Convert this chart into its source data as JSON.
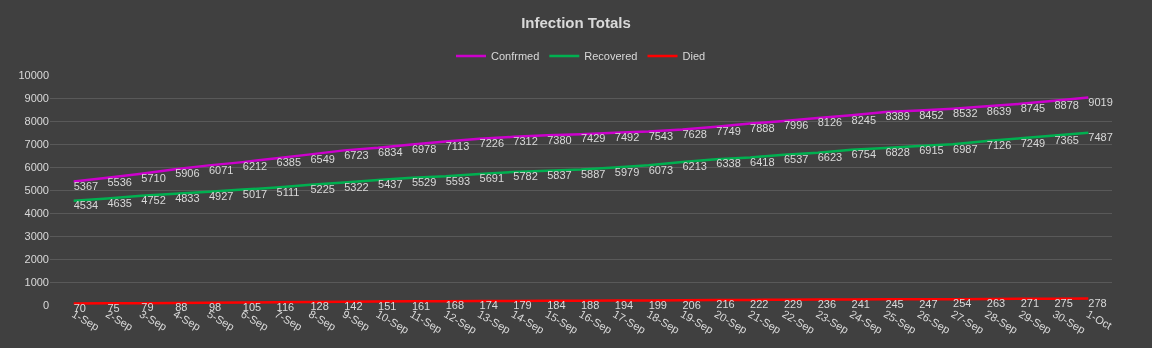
{
  "chart_data": {
    "type": "line",
    "title": "Infection Totals",
    "categories": [
      "1-Sep",
      "2-Sep",
      "3-Sep",
      "4-Sep",
      "5-Sep",
      "6-Sep",
      "7-Sep",
      "8-Sep",
      "9-Sep",
      "10-Sep",
      "11-Sep",
      "12-Sep",
      "13-Sep",
      "14-Sep",
      "15-Sep",
      "16-Sep",
      "17-Sep",
      "18-Sep",
      "19-Sep",
      "20-Sep",
      "21-Sep",
      "22-Sep",
      "23-Sep",
      "24-Sep",
      "25-Sep",
      "26-Sep",
      "27-Sep",
      "28-Sep",
      "29-Sep",
      "30-Sep",
      "1-Oct"
    ],
    "series": [
      {
        "name": "Confrmed",
        "color": "#cc00cc",
        "values": [
          5367,
          5536,
          5710,
          5906,
          6071,
          6212,
          6385,
          6549,
          6723,
          6834,
          6978,
          7113,
          7226,
          7312,
          7380,
          7429,
          7492,
          7543,
          7628,
          7749,
          7888,
          7996,
          8126,
          8245,
          8389,
          8452,
          8532,
          8639,
          8745,
          8878,
          9019
        ]
      },
      {
        "name": "Recovered",
        "color": "#00b050",
        "values": [
          4534,
          4635,
          4752,
          4833,
          4927,
          5017,
          5111,
          5225,
          5322,
          5437,
          5529,
          5593,
          5691,
          5782,
          5837,
          5887,
          5979,
          6073,
          6213,
          6338,
          6418,
          6537,
          6623,
          6754,
          6828,
          6915,
          6987,
          7126,
          7249,
          7365,
          7487
        ]
      },
      {
        "name": "Died",
        "color": "#ff0000",
        "values": [
          70,
          75,
          79,
          88,
          98,
          105,
          116,
          128,
          142,
          151,
          161,
          168,
          174,
          179,
          184,
          188,
          194,
          199,
          206,
          216,
          222,
          229,
          236,
          241,
          245,
          247,
          254,
          263,
          271,
          275,
          278
        ]
      }
    ],
    "ylim": [
      0,
      10000
    ],
    "yticks": [
      0,
      1000,
      2000,
      3000,
      4000,
      5000,
      6000,
      7000,
      8000,
      9000,
      10000
    ],
    "grid": "y",
    "legend": "top",
    "data_labels": true
  }
}
